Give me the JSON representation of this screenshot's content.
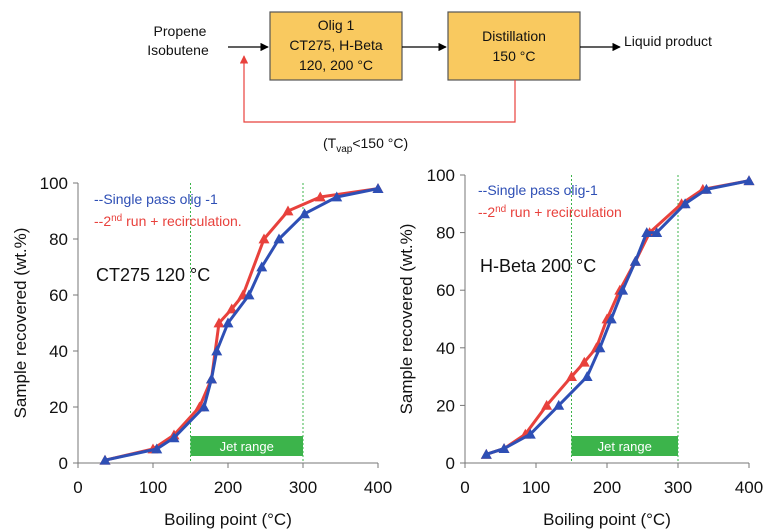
{
  "flow": {
    "feed_line1": "Propene",
    "feed_line2": "Isobutene",
    "box1_line1": "Olig 1",
    "box1_line2": "CT275, H-Beta",
    "box1_line3": "120, 200 °C",
    "box2_line1": "Distillation",
    "box2_line2": "150 °C",
    "output": "Liquid product",
    "recycle_open": "(T",
    "recycle_sub": "vap",
    "recycle_rest": "<150 °C)",
    "box_fill": "#f9c95f",
    "box_stroke": "#555555",
    "recycle_color": "#e8413c"
  },
  "chart_data": [
    {
      "type": "line",
      "annotation": "CT275 120 °C",
      "xlabel": "Boiling point (°C)",
      "ylabel": "Sample recovered (wt.%)",
      "xlim": [
        0,
        400
      ],
      "ylim": [
        0,
        100
      ],
      "xticks": [
        0,
        100,
        200,
        300,
        400
      ],
      "yticks": [
        0,
        20,
        40,
        60,
        80,
        100
      ],
      "legend_position": "top-left",
      "jet_range": {
        "label": "Jet range",
        "from": 150,
        "to": 300,
        "color": "#3cb44b"
      },
      "series": [
        {
          "name": "--Single pass olig -1",
          "color": "#2e4fb5",
          "marker": "triangle",
          "x": [
            36,
            105,
            128,
            168,
            178,
            185,
            200,
            228,
            245,
            268,
            302,
            345,
            400
          ],
          "y": [
            1,
            5,
            9,
            20,
            30,
            40,
            50,
            60,
            70,
            80,
            89,
            95,
            98
          ]
        },
        {
          "name": "--2nd run + recirculation.",
          "name_parts": [
            "--2",
            "nd",
            " run + recirculation."
          ],
          "color": "#e8413c",
          "marker": "triangle",
          "x": [
            36,
            100,
            128,
            162,
            178,
            188,
            205,
            220,
            248,
            280,
            323,
            400
          ],
          "y": [
            1,
            5,
            10,
            20,
            30,
            50,
            55,
            60,
            80,
            90,
            95,
            98
          ]
        }
      ]
    },
    {
      "type": "line",
      "annotation": "H-Beta 200 °C",
      "xlabel": "Boiling point (°C)",
      "ylabel": "Sample recovered (wt.%)",
      "xlim": [
        0,
        400
      ],
      "ylim": [
        0,
        100
      ],
      "xticks": [
        0,
        100,
        200,
        300,
        400
      ],
      "yticks": [
        0,
        20,
        40,
        60,
        80,
        100
      ],
      "legend_position": "top-left",
      "jet_range": {
        "label": "Jet range",
        "from": 150,
        "to": 300,
        "color": "#3cb44b"
      },
      "series": [
        {
          "name": "--Single pass olig-1",
          "color": "#2e4fb5",
          "marker": "triangle",
          "x": [
            30,
            55,
            92,
            132,
            172,
            190,
            206,
            222,
            240,
            256,
            270,
            310,
            340,
            400
          ],
          "y": [
            3,
            5,
            10,
            20,
            30,
            40,
            50,
            60,
            70,
            80,
            80,
            90,
            95,
            98
          ]
        },
        {
          "name": "--2nd run + recirculation",
          "name_parts": [
            "--2",
            "nd",
            " run + recirculation"
          ],
          "color": "#e8413c",
          "marker": "triangle",
          "x": [
            30,
            55,
            85,
            115,
            150,
            168,
            185,
            200,
            218,
            240,
            260,
            305,
            335,
            400
          ],
          "y": [
            3,
            5,
            10,
            20,
            30,
            35,
            40,
            50,
            60,
            70,
            80,
            90,
            95,
            98
          ]
        }
      ]
    }
  ]
}
